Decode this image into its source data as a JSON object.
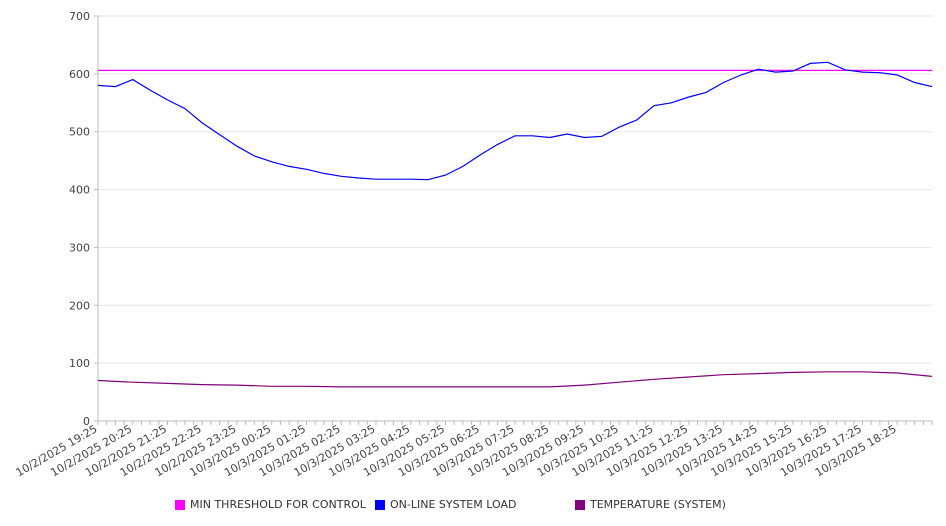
{
  "chart_data": {
    "type": "line",
    "title": "",
    "xlabel": "",
    "ylabel": "",
    "ylim": [
      0,
      700
    ],
    "y_ticks": [
      "0",
      "100",
      "200",
      "300",
      "400",
      "500",
      "600",
      "700"
    ],
    "grid": true,
    "legend_position": "bottom",
    "x_tick_labels": [
      "10/2/2025 19:25",
      "10/2/2025 20:25",
      "10/2/2025 21:25",
      "10/2/2025 22:25",
      "10/2/2025 23:25",
      "10/3/2025 00:25",
      "10/3/2025 01:25",
      "10/3/2025 02:25",
      "10/3/2025 03:25",
      "10/3/2025 04:25",
      "10/3/2025 05:25",
      "10/3/2025 06:25",
      "10/3/2025 07:25",
      "10/3/2025 08:25",
      "10/3/2025 09:25",
      "10/3/2025 10:25",
      "10/3/2025 11:25",
      "10/3/2025 12:25",
      "10/3/2025 13:25",
      "10/3/2025 14:25",
      "10/3/2025 15:25",
      "10/3/2025 16:25",
      "10/3/2025 17:25",
      "10/3/2025 18:25"
    ],
    "x_range_hours_from_start": [
      0,
      24
    ],
    "series": [
      {
        "name": "MIN THRESHOLD FOR CONTROL",
        "color": "#ff00ff",
        "x_hours": [
          0,
          24
        ],
        "values": [
          606,
          606
        ]
      },
      {
        "name": "ON-LINE SYSTEM LOAD",
        "color": "#0000ff",
        "x_hours": [
          0,
          0.5,
          1,
          1.5,
          2,
          2.5,
          3,
          3.5,
          4,
          4.5,
          5,
          5.5,
          6,
          6.5,
          7,
          7.5,
          8,
          8.5,
          9,
          9.5,
          10,
          10.5,
          11,
          11.5,
          12,
          12.5,
          13,
          13.5,
          14,
          14.5,
          15,
          15.5,
          16,
          16.5,
          17,
          17.5,
          18,
          18.5,
          19,
          19.5,
          20,
          20.5,
          21,
          21.5,
          22,
          22.5,
          23,
          23.5,
          24
        ],
        "values": [
          580,
          578,
          590,
          572,
          555,
          540,
          515,
          495,
          475,
          458,
          448,
          440,
          435,
          428,
          423,
          420,
          418,
          418,
          418,
          417,
          425,
          440,
          460,
          478,
          493,
          493,
          490,
          496,
          490,
          492,
          508,
          520,
          545,
          550,
          560,
          568,
          585,
          598,
          608,
          603,
          605,
          618,
          620,
          607,
          603,
          602,
          598,
          585,
          578
        ]
      },
      {
        "name": "TEMPERATURE (SYSTEM)",
        "color": "#800080",
        "x_hours": [
          0,
          1,
          2,
          3,
          4,
          5,
          6,
          7,
          8,
          9,
          10,
          11,
          12,
          13,
          14,
          15,
          16,
          17,
          18,
          19,
          20,
          21,
          22,
          23,
          24
        ],
        "values": [
          70,
          67,
          65,
          63,
          62,
          60,
          60,
          59,
          59,
          59,
          59,
          59,
          59,
          59,
          62,
          67,
          72,
          76,
          80,
          82,
          84,
          85,
          85,
          83,
          77
        ]
      }
    ]
  }
}
